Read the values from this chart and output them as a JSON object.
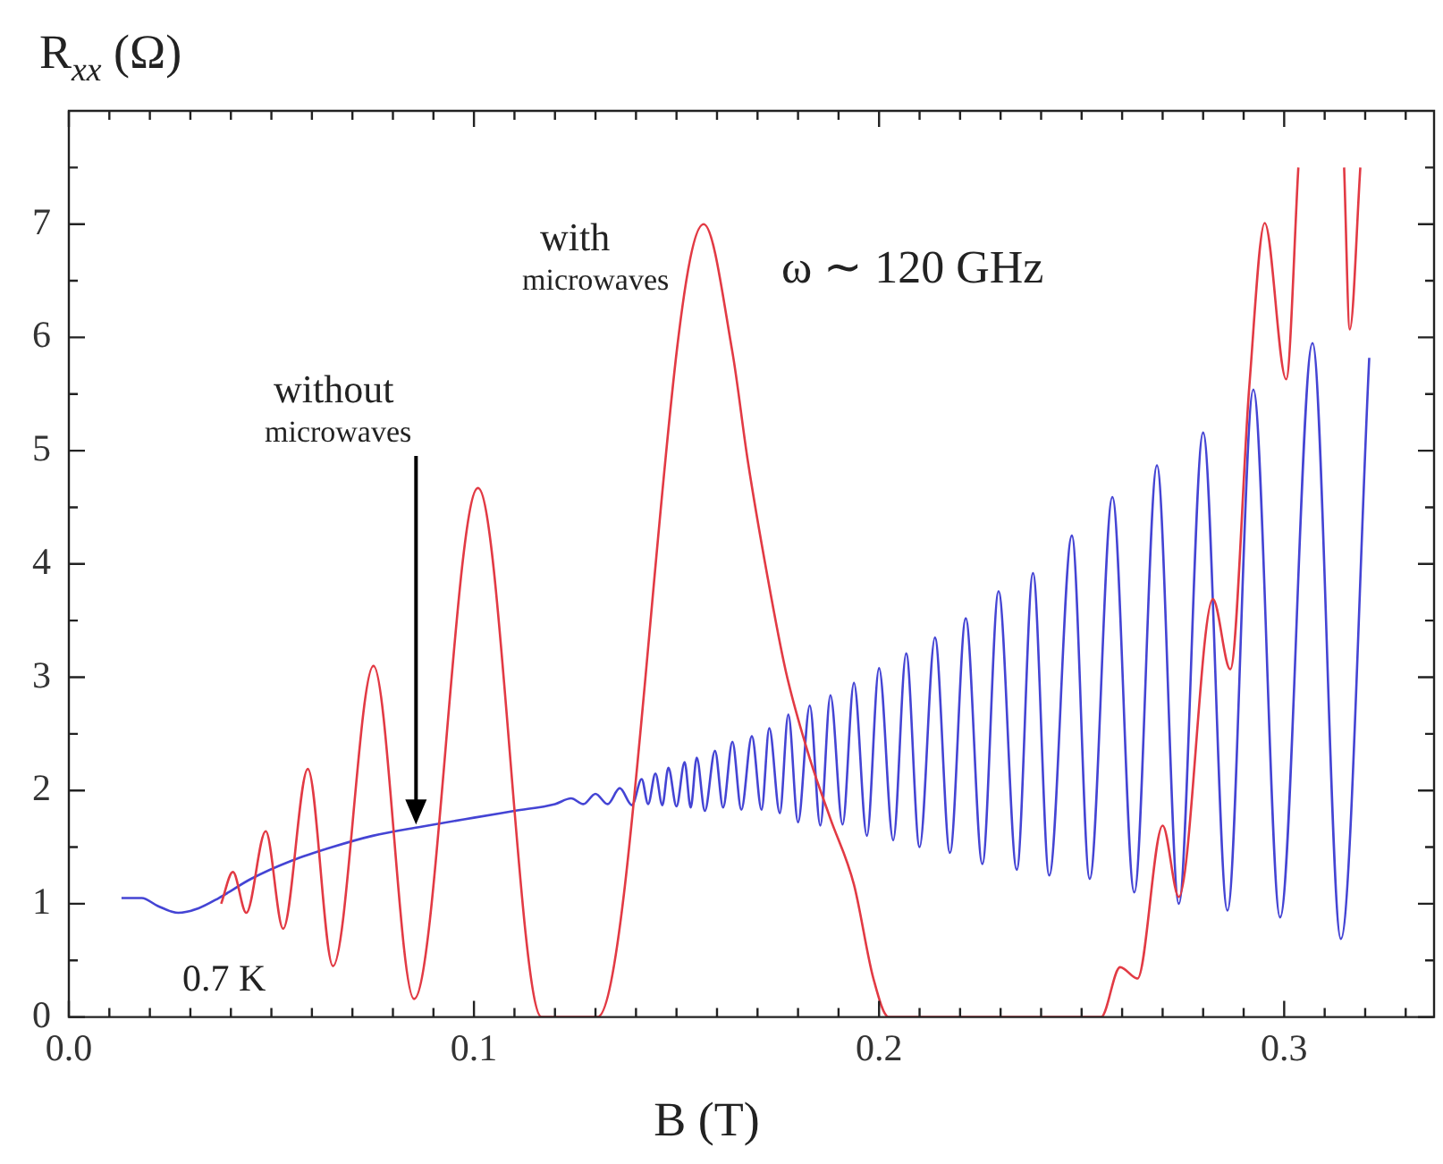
{
  "chart_data": {
    "type": "line",
    "xlabel": "B (T)",
    "ylabel": "R$_{xx}$ (Ω)",
    "xlim": [
      0,
      0.337
    ],
    "ylim": [
      0,
      8
    ],
    "xticks": [
      {
        "value": 0,
        "label": "0.0"
      },
      {
        "value": 0.01,
        "label": null
      },
      {
        "value": 0.02,
        "label": null
      },
      {
        "value": 0.03,
        "label": null
      },
      {
        "value": 0.04,
        "label": null
      },
      {
        "value": 0.05,
        "label": null
      },
      {
        "value": 0.06,
        "label": null
      },
      {
        "value": 0.07,
        "label": null
      },
      {
        "value": 0.08,
        "label": null
      },
      {
        "value": 0.09,
        "label": null
      },
      {
        "value": 0.1,
        "label": "0.1"
      },
      {
        "value": 0.11,
        "label": null
      },
      {
        "value": 0.12,
        "label": null
      },
      {
        "value": 0.13,
        "label": null
      },
      {
        "value": 0.14,
        "label": null
      },
      {
        "value": 0.15,
        "label": null
      },
      {
        "value": 0.16,
        "label": null
      },
      {
        "value": 0.17,
        "label": null
      },
      {
        "value": 0.18,
        "label": null
      },
      {
        "value": 0.19,
        "label": null
      },
      {
        "value": 0.2,
        "label": "0.2"
      },
      {
        "value": 0.21,
        "label": null
      },
      {
        "value": 0.22,
        "label": null
      },
      {
        "value": 0.23,
        "label": null
      },
      {
        "value": 0.24,
        "label": null
      },
      {
        "value": 0.25,
        "label": null
      },
      {
        "value": 0.26,
        "label": null
      },
      {
        "value": 0.27,
        "label": null
      },
      {
        "value": 0.28,
        "label": null
      },
      {
        "value": 0.29,
        "label": null
      },
      {
        "value": 0.3,
        "label": "0.3"
      },
      {
        "value": 0.31,
        "label": null
      },
      {
        "value": 0.32,
        "label": null
      },
      {
        "value": 0.33,
        "label": null
      }
    ],
    "yticks": [
      0,
      {
        "value": 0.5,
        "label": null
      },
      1,
      {
        "value": 1.5,
        "label": null
      },
      2,
      {
        "value": 2.5,
        "label": null
      },
      3,
      {
        "value": 3.5,
        "label": null
      },
      4,
      {
        "value": 4.5,
        "label": null
      },
      5,
      {
        "value": 5.5,
        "label": null
      },
      6,
      {
        "value": 6.5,
        "label": null
      },
      7,
      {
        "value": 7.5,
        "label": null
      }
    ],
    "grid": false,
    "legend": false,
    "marker": "none",
    "line_style": "solid",
    "series": [
      {
        "color": "#e23a44",
        "x": [
          0.0376,
          0.0405,
          0.0438,
          0.0486,
          0.0529,
          0.059,
          0.0652,
          0.0752,
          0.0852,
          0.101,
          0.1167,
          0.1305,
          0.1567,
          0.1638,
          0.1676,
          0.1724,
          0.177,
          0.183,
          0.188,
          0.1938,
          0.1986,
          0.2024,
          0.2548,
          0.2595,
          0.2638,
          0.27,
          0.274,
          0.2824,
          0.2867,
          0.2914,
          0.2952,
          0.3005,
          0.3035
        ],
        "values": [
          1.0,
          1.28,
          0.92,
          1.64,
          0.78,
          2.19,
          0.45,
          3.1,
          0.16,
          4.67,
          0.0,
          0.0,
          7.0,
          5.87,
          4.91,
          3.9,
          3.05,
          2.27,
          1.75,
          1.17,
          0.34,
          0.0,
          0.0,
          0.44,
          0.34,
          1.69,
          1.06,
          3.69,
          3.07,
          5.57,
          7.01,
          5.63,
          7.5
        ]
      },
      {
        "color": "#e23a44",
        "x": [
          0.3148,
          0.3162,
          0.3188
        ],
        "values": [
          7.5,
          6.07,
          7.5
        ]
      },
      {
        "color": "#4444d4",
        "x": [
          0.013,
          0.018,
          0.022,
          0.027,
          0.032,
          0.037,
          0.045,
          0.055,
          0.065,
          0.075,
          0.087,
          0.1,
          0.11,
          0.12,
          0.124,
          0.127,
          0.13,
          0.133,
          0.136,
          0.139,
          0.1414,
          0.143,
          0.1448,
          0.1465,
          0.148,
          0.15,
          0.152,
          0.1535,
          0.155,
          0.157,
          0.1595,
          0.1615,
          0.1638,
          0.166,
          0.1686,
          0.171,
          0.1729,
          0.1755,
          0.1776,
          0.18,
          0.1829,
          0.1855,
          0.188,
          0.191,
          0.1938,
          0.197,
          0.2,
          0.2035,
          0.2067,
          0.21,
          0.2138,
          0.2175,
          0.2214,
          0.2255,
          0.2295,
          0.234,
          0.238,
          0.242,
          0.2476,
          0.252,
          0.2576,
          0.263,
          0.2686,
          0.274,
          0.28,
          0.286,
          0.2924,
          0.299,
          0.307,
          0.314,
          0.321
        ],
        "values": [
          1.05,
          1.05,
          0.98,
          0.92,
          0.96,
          1.05,
          1.22,
          1.38,
          1.5,
          1.6,
          1.68,
          1.76,
          1.82,
          1.88,
          1.93,
          1.88,
          1.97,
          1.88,
          2.02,
          1.87,
          2.1,
          1.88,
          2.15,
          1.87,
          2.2,
          1.86,
          2.25,
          1.85,
          2.29,
          1.82,
          2.35,
          1.85,
          2.43,
          1.83,
          2.48,
          1.83,
          2.55,
          1.8,
          2.67,
          1.72,
          2.75,
          1.69,
          2.84,
          1.7,
          2.95,
          1.6,
          3.08,
          1.56,
          3.21,
          1.5,
          3.35,
          1.45,
          3.52,
          1.35,
          3.76,
          1.3,
          3.92,
          1.25,
          4.25,
          1.22,
          4.59,
          1.1,
          4.87,
          1.0,
          5.16,
          0.94,
          5.54,
          0.88,
          5.95,
          0.69,
          5.82
        ]
      }
    ],
    "annotations": [
      "with microwaves",
      "ω ∼ 120 GHz",
      {
        "text": "without microwaves",
        "x": 0.0857,
        "y": 1.7
      },
      "0.7 K"
    ]
  }
}
